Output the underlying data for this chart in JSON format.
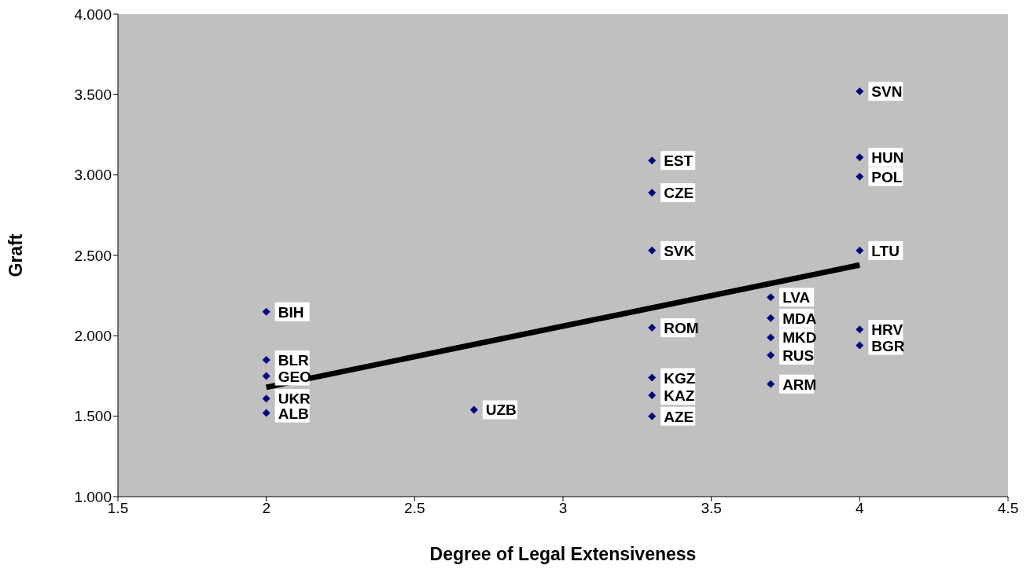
{
  "chart_data": {
    "type": "scatter",
    "xlabel": "Degree of Legal Extensiveness",
    "ylabel": "Graft",
    "xlim": [
      1.5,
      4.5
    ],
    "ylim": [
      1,
      4
    ],
    "xticks": [
      1.5,
      2,
      2.5,
      3,
      3.5,
      4,
      4.5
    ],
    "yticks": [
      {
        "value": 1,
        "label": "1.000"
      },
      {
        "value": 1.5,
        "label": "1.500"
      },
      {
        "value": 2,
        "label": "2.000"
      },
      {
        "value": 2.5,
        "label": "2.500"
      },
      {
        "value": 3,
        "label": "3.000"
      },
      {
        "value": 3.5,
        "label": "3.500"
      },
      {
        "value": 4,
        "label": "4.000"
      }
    ],
    "grid": false,
    "legend": false,
    "marker": "diamond",
    "series": [
      {
        "color": "#000080",
        "x": [
          4,
          4,
          4,
          4,
          4,
          4,
          3.3,
          3.3,
          3.3,
          3.3,
          3.3,
          3.3,
          3.3,
          3.7,
          3.7,
          3.7,
          3.7,
          3.7,
          2,
          2,
          2,
          2,
          2,
          2.7
        ],
        "values": [
          3.52,
          3.11,
          2.99,
          2.53,
          2.04,
          1.94,
          3.09,
          2.89,
          2.53,
          2.05,
          1.74,
          1.63,
          1.5,
          2.24,
          2.11,
          1.99,
          1.88,
          1.7,
          2.15,
          1.85,
          1.75,
          1.61,
          1.52,
          1.54
        ]
      },
      {
        "type": "line",
        "color": "#000000",
        "x": [
          2,
          4
        ],
        "values": [
          1.68,
          2.44
        ],
        "marker": "none"
      }
    ],
    "annotations": [
      {
        "text": "SVN",
        "x": 4,
        "y": 3.52
      },
      {
        "text": "HUN",
        "x": 4,
        "y": 3.11
      },
      {
        "text": "POL",
        "x": 4,
        "y": 2.99
      },
      {
        "text": "LTU",
        "x": 4,
        "y": 2.53
      },
      {
        "text": "HRV",
        "x": 4,
        "y": 2.04
      },
      {
        "text": "BGR",
        "x": 4,
        "y": 1.94
      },
      {
        "text": "EST",
        "x": 3.3,
        "y": 3.09
      },
      {
        "text": "CZE",
        "x": 3.3,
        "y": 2.89
      },
      {
        "text": "SVK",
        "x": 3.3,
        "y": 2.53
      },
      {
        "text": "ROM",
        "x": 3.3,
        "y": 2.05
      },
      {
        "text": "KGZ",
        "x": 3.3,
        "y": 1.74
      },
      {
        "text": "KAZ",
        "x": 3.3,
        "y": 1.63
      },
      {
        "text": "AZE",
        "x": 3.3,
        "y": 1.5
      },
      {
        "text": "LVA",
        "x": 3.7,
        "y": 2.24
      },
      {
        "text": "MDA",
        "x": 3.7,
        "y": 2.11
      },
      {
        "text": "MKD",
        "x": 3.7,
        "y": 1.99
      },
      {
        "text": "RUS",
        "x": 3.7,
        "y": 1.88
      },
      {
        "text": "ARM",
        "x": 3.7,
        "y": 1.7
      },
      {
        "text": "BIH",
        "x": 2,
        "y": 2.15
      },
      {
        "text": "BLR",
        "x": 2,
        "y": 1.85
      },
      {
        "text": "GEO",
        "x": 2,
        "y": 1.75
      },
      {
        "text": "UKR",
        "x": 2,
        "y": 1.61
      },
      {
        "text": "ALB",
        "x": 2,
        "y": 1.52
      },
      {
        "text": "UZB",
        "x": 2.7,
        "y": 1.54
      }
    ]
  }
}
